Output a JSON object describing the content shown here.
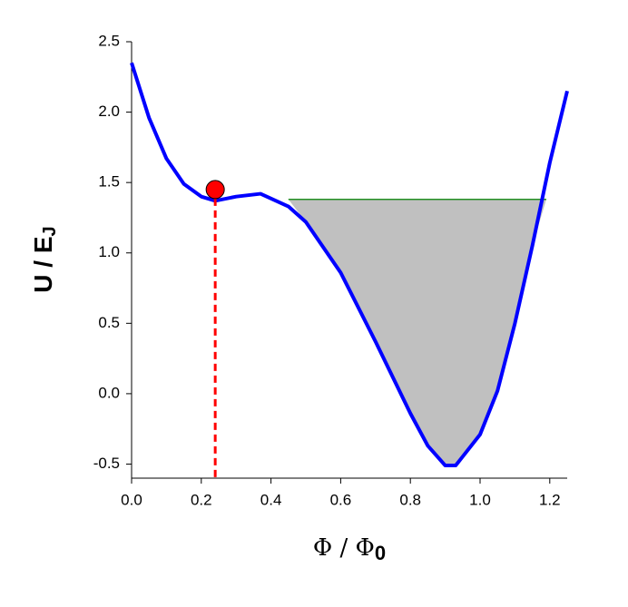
{
  "chart_data": {
    "type": "line",
    "x_label": {
      "main": "Φ / Φ",
      "sub": "0"
    },
    "y_label": {
      "main": "U / E",
      "sub": "J"
    },
    "x": [
      0,
      0.05,
      0.1,
      0.15,
      0.2,
      0.24,
      0.3,
      0.37,
      0.45,
      0.5,
      0.6,
      0.7,
      0.8,
      0.85,
      0.9,
      0.93,
      1.0,
      1.05,
      1.1,
      1.15,
      1.2,
      1.25
    ],
    "series": [
      {
        "color": "#0000ff",
        "values": [
          2.35,
          1.96,
          1.67,
          1.49,
          1.4,
          1.37,
          1.4,
          1.42,
          1.33,
          1.22,
          0.86,
          0.37,
          -0.14,
          -0.37,
          -0.51,
          -0.51,
          -0.29,
          0.02,
          0.5,
          1.05,
          1.64,
          2.15
        ]
      }
    ],
    "fill": {
      "level": 1.38,
      "xrange": [
        0.45,
        1.19
      ],
      "color": "#c0c0c0",
      "edge_color": "#008000"
    },
    "marker": {
      "x": 0.24,
      "y": 1.45,
      "color": "#ff0000",
      "line_color": "#ff0000"
    },
    "xlim": [
      0,
      1.25
    ],
    "ylim": [
      -0.6,
      2.5
    ],
    "xticks": [
      {
        "value": 0,
        "label": "0.0"
      },
      0.2,
      0.4,
      0.6,
      0.8,
      {
        "value": 1,
        "label": "1.0"
      },
      1.2
    ],
    "yticks": [
      -0.5,
      {
        "value": 0,
        "label": "0.0"
      },
      0.5,
      {
        "value": 1,
        "label": "1.0"
      },
      1.5,
      {
        "value": 2,
        "label": "2.0"
      },
      2.5
    ]
  }
}
